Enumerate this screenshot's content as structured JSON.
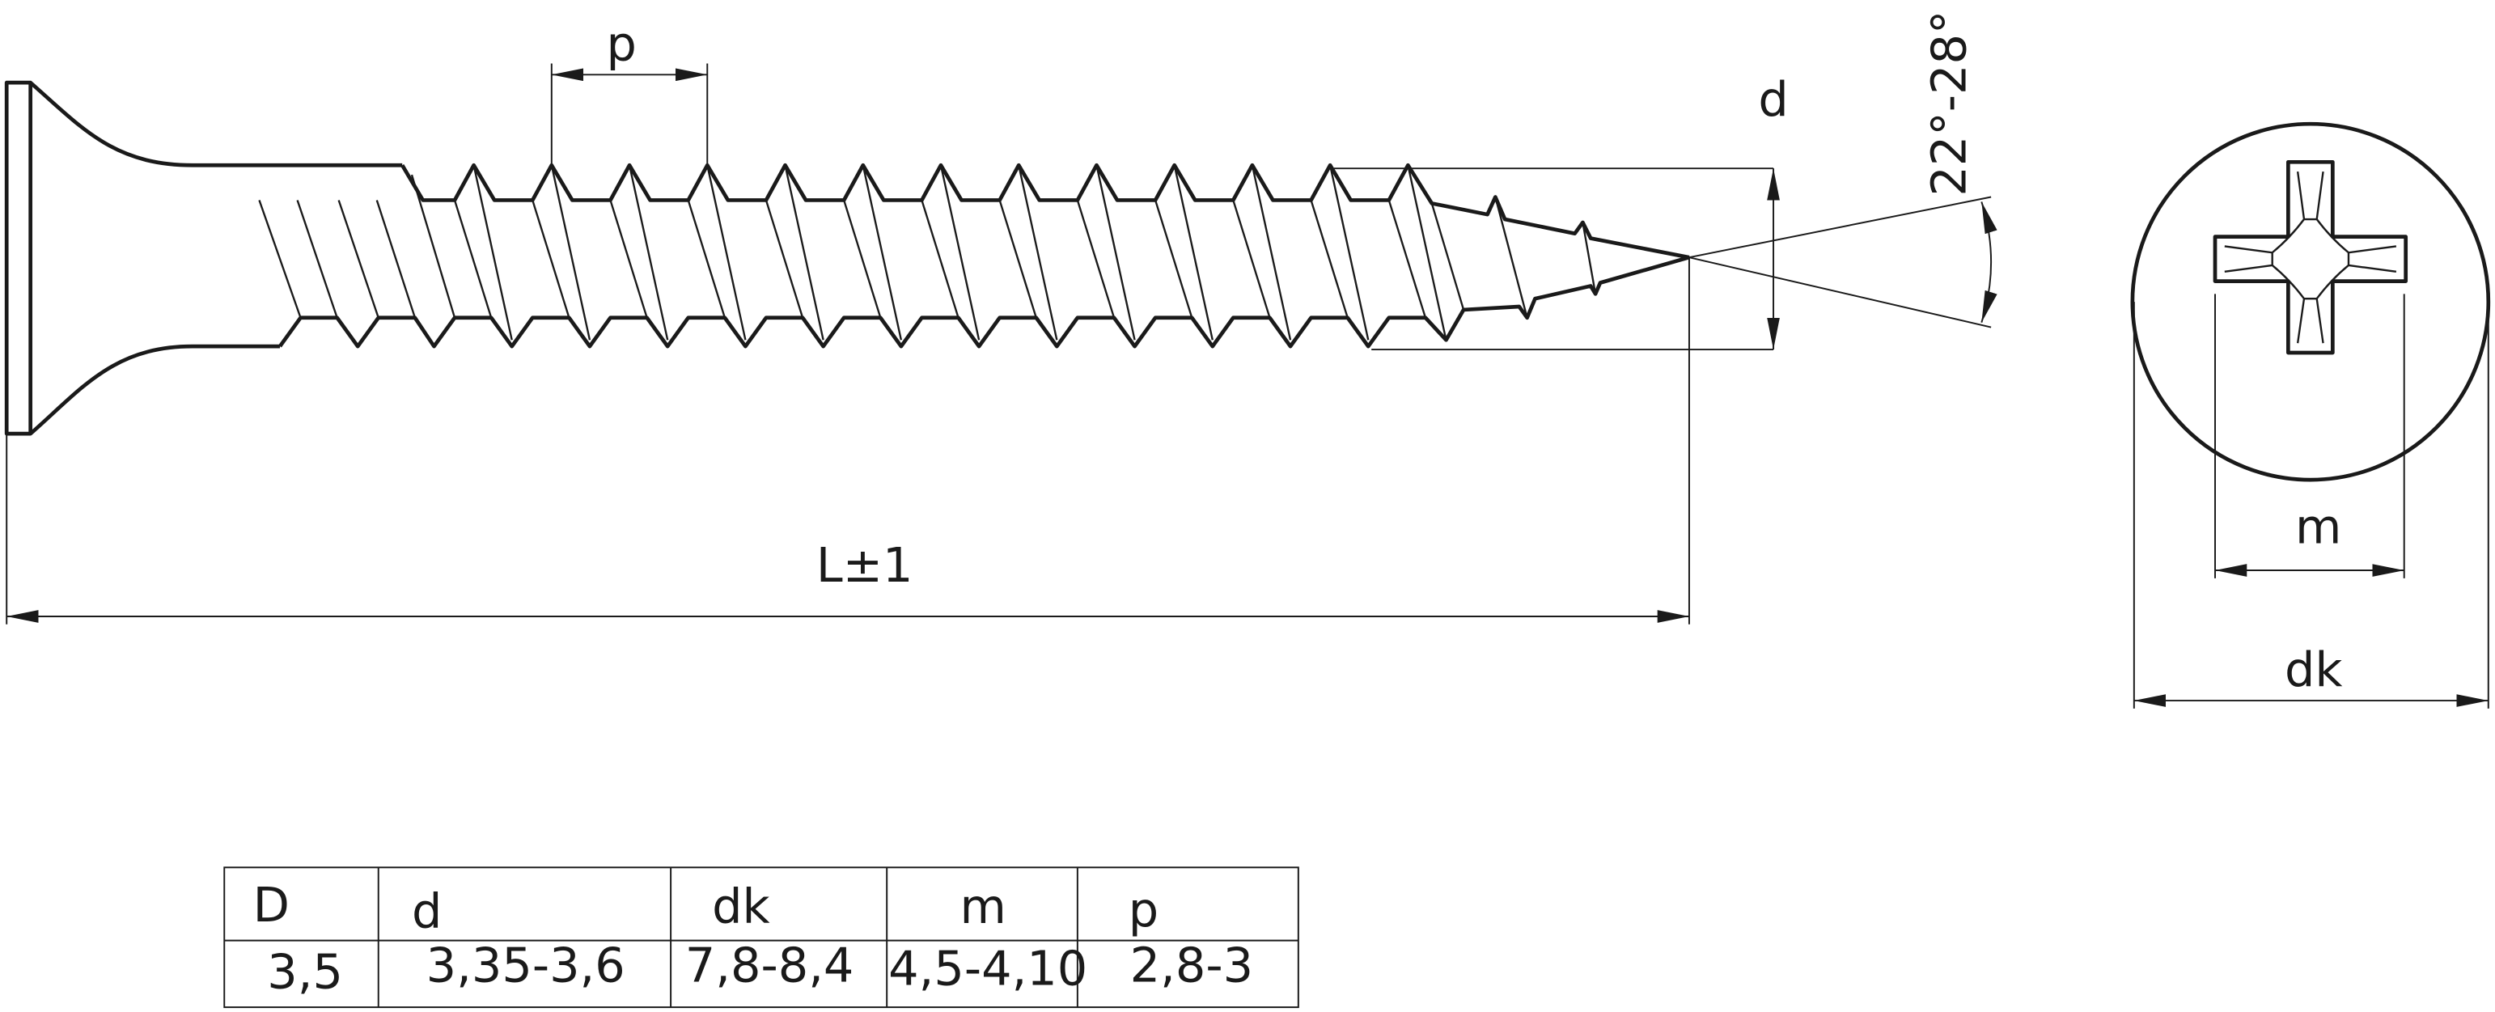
{
  "labels": {
    "pitch": "p",
    "diameter": "d",
    "angle": "22°-28°",
    "length": "L±1",
    "recess": "m",
    "head": "dk"
  },
  "table": {
    "header": [
      "D",
      "d",
      "dk",
      "m",
      "p"
    ],
    "rows": [
      [
        "3,5",
        "3,35-3,6",
        "7,8-8,4",
        "4,5-4,10",
        "2,8-3"
      ]
    ]
  }
}
